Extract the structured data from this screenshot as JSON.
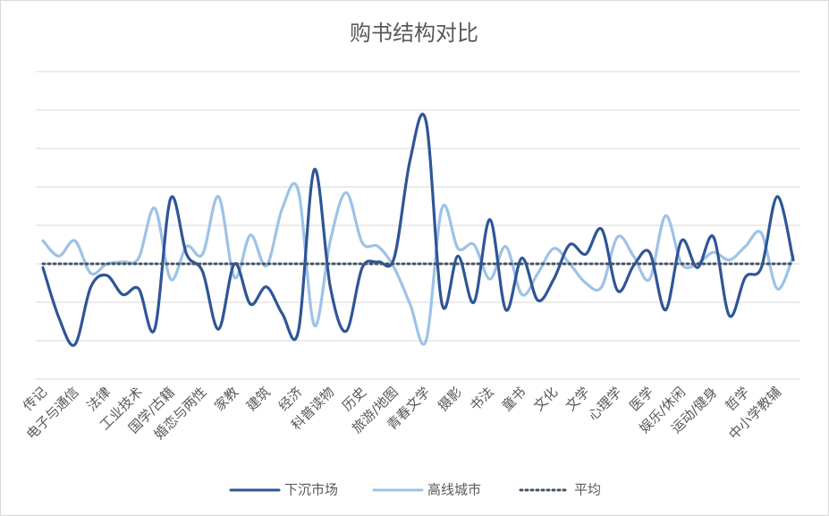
{
  "chart_data": {
    "type": "line",
    "title": "购书结构对比",
    "categories": [
      "传记",
      null,
      "电子与通信",
      null,
      "法律",
      null,
      "工业技术",
      null,
      "国学/古籍",
      null,
      "婚恋与两性",
      null,
      "家教",
      null,
      "建筑",
      null,
      "经济",
      null,
      "科普读物",
      null,
      "历史",
      null,
      "旅游/地图",
      null,
      "青春文学",
      null,
      "摄影",
      null,
      "书法",
      null,
      "童书",
      null,
      "文化",
      null,
      "文学",
      null,
      "心理学",
      null,
      "医学",
      null,
      "娱乐/休闲",
      null,
      "运动/健身",
      null,
      "哲学",
      null,
      "中小学教辅",
      null
    ],
    "series": [
      {
        "name": "下沉市场",
        "color": "#2f5597",
        "style": "solid",
        "values": [
          -0.1,
          -1.4,
          -2.1,
          -0.6,
          -0.3,
          -0.8,
          -0.65,
          -1.7,
          1.7,
          0.25,
          -0.2,
          -1.7,
          0,
          -1.05,
          -0.6,
          -1.3,
          -1.75,
          2.45,
          -0.6,
          -1.75,
          -0.1,
          0.05,
          0.15,
          2.7,
          3.7,
          -1.05,
          0.2,
          -1.0,
          1.15,
          -1.2,
          0.15,
          -0.95,
          -0.4,
          0.5,
          0.25,
          0.9,
          -0.7,
          -0.05,
          0.3,
          -1.2,
          0.6,
          -0.1,
          0.7,
          -1.35,
          -0.35,
          -0.1,
          1.75,
          0.1
        ]
      },
      {
        "name": "高线城市",
        "color": "#9dc3e6",
        "style": "solid",
        "values": [
          0.6,
          0.2,
          0.6,
          -0.25,
          0.0,
          0.05,
          0.15,
          1.45,
          -0.4,
          0.45,
          0.25,
          1.75,
          -0.35,
          0.75,
          -0.05,
          1.45,
          1.9,
          -1.6,
          0.6,
          1.85,
          0.55,
          0.45,
          -0.1,
          -1.05,
          -2.0,
          1.45,
          0.4,
          0.5,
          -0.4,
          0.45,
          -0.8,
          -0.25,
          0.4,
          0,
          -0.5,
          -0.6,
          0.7,
          0.2,
          -0.4,
          1.25,
          0,
          0.0,
          0.3,
          0.1,
          0.45,
          0.8,
          -0.65,
          0.2
        ]
      },
      {
        "name": "平均",
        "color": "#44546a",
        "style": "dotted",
        "values": [
          0,
          0,
          0,
          0,
          0,
          0,
          0,
          0,
          0,
          0,
          0,
          0,
          0,
          0,
          0,
          0,
          0,
          0,
          0,
          0,
          0,
          0,
          0,
          0,
          0,
          0,
          0,
          0,
          0,
          0,
          0,
          0,
          0,
          0,
          0,
          0,
          0,
          0,
          0,
          0,
          0,
          0,
          0,
          0,
          0,
          0,
          0,
          0
        ]
      }
    ],
    "ylim": [
      -3,
      5
    ],
    "yticks": [
      -3,
      -2,
      -1,
      0,
      1,
      2,
      3,
      4,
      5
    ],
    "grid": true,
    "legend": "bottom"
  }
}
